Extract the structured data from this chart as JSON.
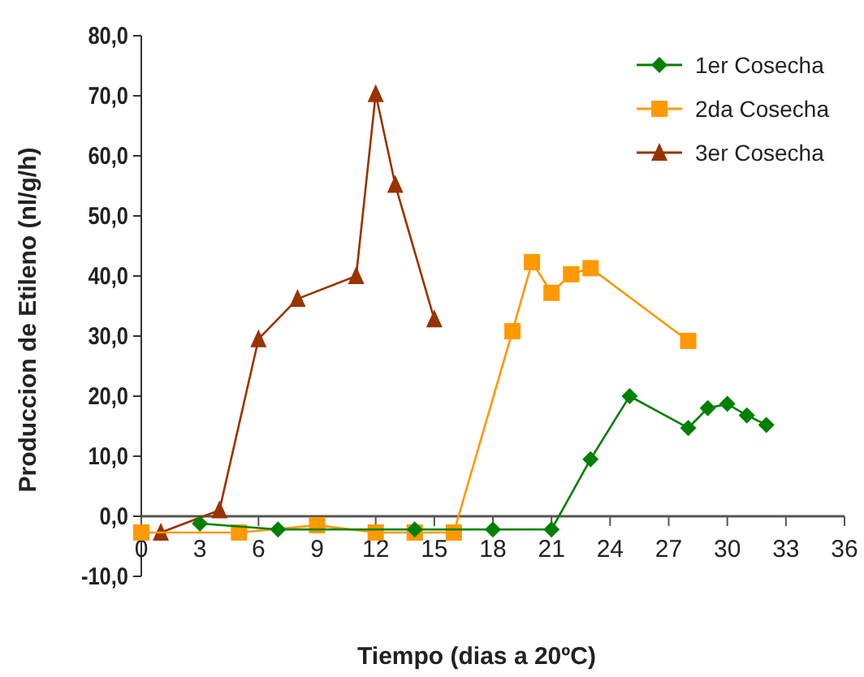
{
  "chart_data": {
    "type": "line",
    "xlabel": "Tiempo (dias a 20ºC)",
    "ylabel": "Produccion de Etileno (nl/g/h)",
    "xlim": [
      0,
      36
    ],
    "xticks": [
      0,
      3,
      6,
      9,
      12,
      15,
      18,
      21,
      24,
      27,
      30,
      33,
      36
    ],
    "ylim": [
      -10,
      80
    ],
    "yticks": [
      {
        "value": -10,
        "label": "-10,0"
      },
      {
        "value": 0,
        "label": "0,0"
      },
      {
        "value": 10,
        "label": "10,0"
      },
      {
        "value": 20,
        "label": "20,0"
      },
      {
        "value": 30,
        "label": "30,0"
      },
      {
        "value": 40,
        "label": "40,0"
      },
      {
        "value": 50,
        "label": "50,0"
      },
      {
        "value": 60,
        "label": "60,0"
      },
      {
        "value": 70,
        "label": "70,0"
      },
      {
        "value": 80,
        "label": "80,0"
      }
    ],
    "grid": false,
    "legend": "top right",
    "series": [
      {
        "name": "1er Cosecha",
        "color": "#008000",
        "marker": "diamond",
        "x": [
          3,
          7,
          14,
          18,
          21,
          23,
          25,
          28,
          29,
          30,
          31,
          32
        ],
        "values": [
          -1.2,
          -2.2,
          -2.2,
          -2.2,
          -2.2,
          9.5,
          20,
          14.7,
          18,
          18.7,
          16.8,
          15.2
        ]
      },
      {
        "name": "2da Cosecha",
        "color": "#ff9900",
        "marker": "square",
        "x": [
          0,
          5,
          9,
          12,
          14,
          16,
          19,
          20,
          21,
          22,
          23,
          28
        ],
        "values": [
          -2.7,
          -2.7,
          -1.5,
          -2.7,
          -2.7,
          -2.7,
          30.8,
          42.3,
          37.2,
          40.3,
          41.3,
          29.2
        ]
      },
      {
        "name": "3er Cosecha",
        "color": "#993300",
        "marker": "triangle",
        "x": [
          1,
          4,
          6,
          8,
          11,
          12,
          13,
          15
        ],
        "values": [
          -2.7,
          1,
          29.5,
          36.2,
          40,
          70.3,
          55.2,
          32.8
        ]
      }
    ]
  }
}
